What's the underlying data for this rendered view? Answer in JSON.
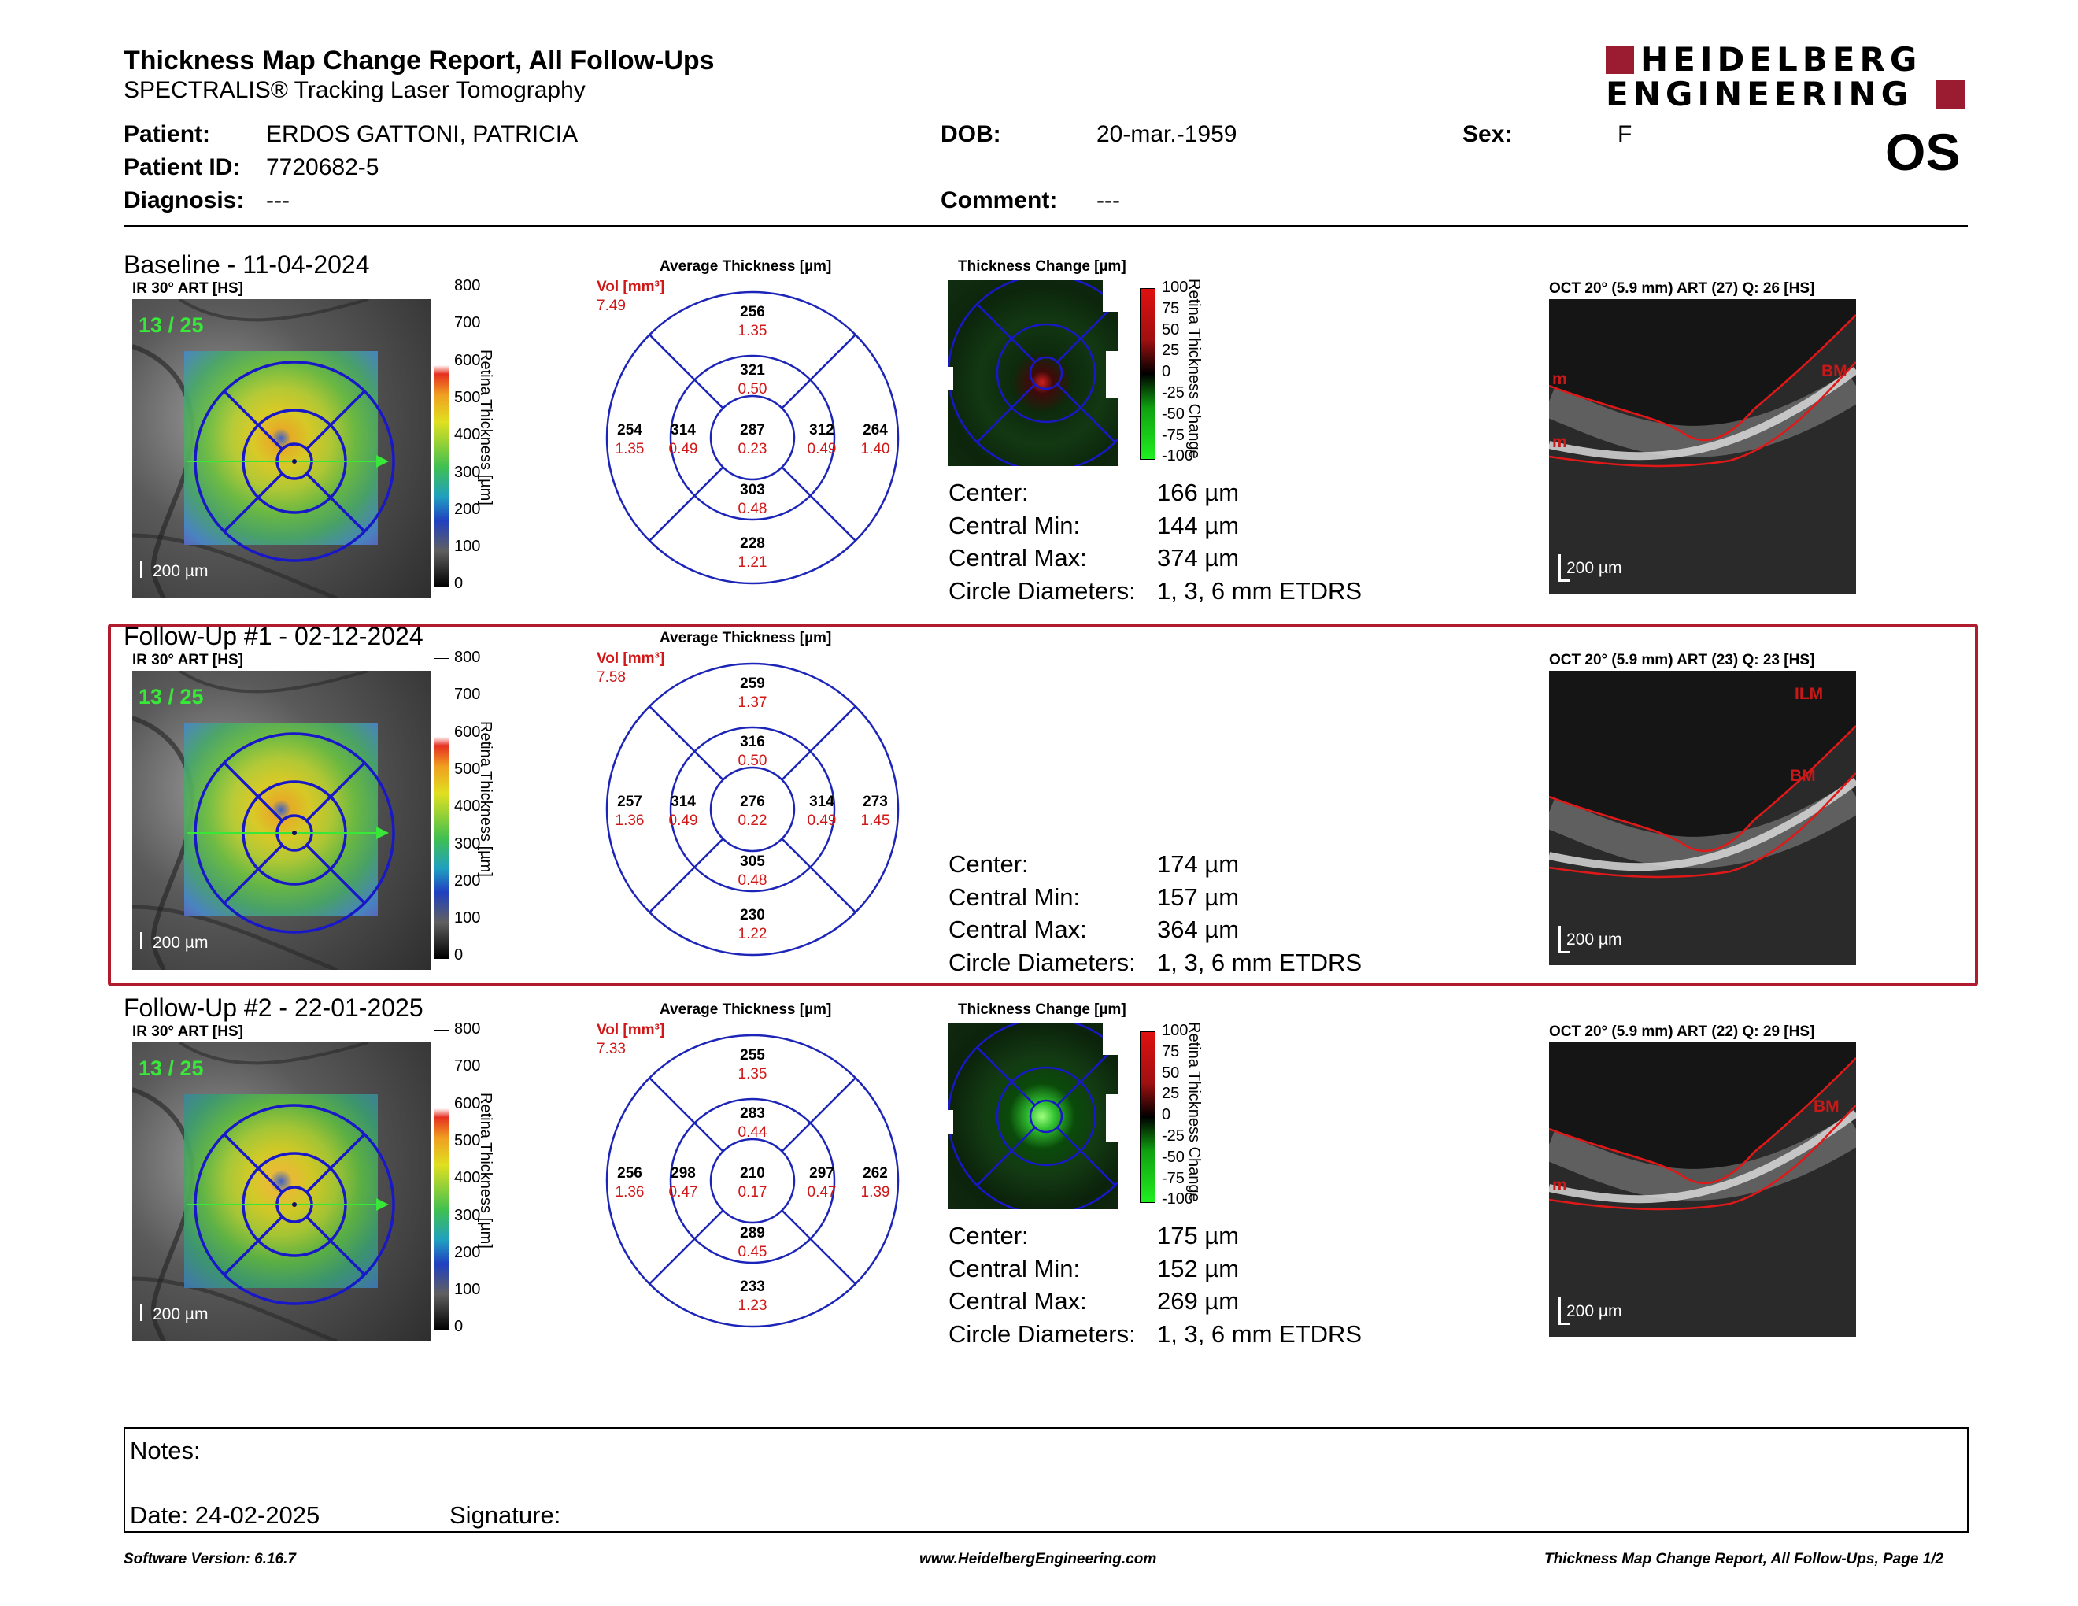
{
  "header": {
    "title": "Thickness Map Change Report, All Follow-Ups",
    "subtitle": "SPECTRALIS® Tracking Laser Tomography",
    "logo_line1": "HEIDELBERG",
    "logo_line2": "ENGINEERING",
    "eye": "OS"
  },
  "patient": {
    "patient_label": "Patient:",
    "patient_value": "ERDOS GATTONI, PATRICIA",
    "id_label": "Patient ID:",
    "id_value": "7720682-5",
    "diagnosis_label": "Diagnosis:",
    "diagnosis_value": "---",
    "dob_label": "DOB:",
    "dob_value": "20-mar.-1959",
    "comment_label": "Comment:",
    "comment_value": "---",
    "sex_label": "Sex:",
    "sex_value": "F"
  },
  "common": {
    "ir_label": "IR 30° ART [HS]",
    "scale_label": "200 µm",
    "retina_axis": "Retina Thickness [µm]",
    "retina_ticks": [
      "800",
      "700",
      "600",
      "500",
      "400",
      "300",
      "200",
      "100",
      "0"
    ],
    "change_ticks": [
      "100",
      "75",
      "50",
      "25",
      "0",
      "-25",
      "-50",
      "-75",
      "-100"
    ],
    "change_axis": "Retina Thickness Change",
    "avg_title": "Average Thickness [µm]",
    "change_title": "Thickness Change [µm]",
    "vol_label": "Vol [mm³]",
    "center_label": "Center:",
    "cmin_label": "Central Min:",
    "cmax_label": "Central Max:",
    "circle_label": "Circle Diameters:",
    "circle_value": "1, 3, 6 mm ETDRS"
  },
  "exams": [
    {
      "title": "Baseline - 11-04-2024",
      "frames": "13 / 25",
      "vol": "7.49",
      "etdrs": {
        "outer_top": [
          "256",
          "1.35"
        ],
        "inner_top": [
          "321",
          "0.50"
        ],
        "outer_left": [
          "254",
          "1.35"
        ],
        "inner_left": [
          "314",
          "0.49"
        ],
        "center": [
          "287",
          "0.23"
        ],
        "inner_right": [
          "312",
          "0.49"
        ],
        "outer_right": [
          "264",
          "1.40"
        ],
        "inner_bottom": [
          "303",
          "0.48"
        ],
        "outer_bottom": [
          "228",
          "1.21"
        ]
      },
      "center": "166 µm",
      "cmin": "144 µm",
      "cmax": "374 µm",
      "oct_label": "OCT 20° (5.9 mm) ART (27) Q: 26 [HS]",
      "oct_tags": [
        "m",
        "m",
        "BM"
      ]
    },
    {
      "title": "Follow-Up #1 - 02-12-2024",
      "frames": "13 / 25",
      "vol": "7.58",
      "etdrs": {
        "outer_top": [
          "259",
          "1.37"
        ],
        "inner_top": [
          "316",
          "0.50"
        ],
        "outer_left": [
          "257",
          "1.36"
        ],
        "inner_left": [
          "314",
          "0.49"
        ],
        "center": [
          "276",
          "0.22"
        ],
        "inner_right": [
          "314",
          "0.49"
        ],
        "outer_right": [
          "273",
          "1.45"
        ],
        "inner_bottom": [
          "305",
          "0.48"
        ],
        "outer_bottom": [
          "230",
          "1.22"
        ]
      },
      "center": "174 µm",
      "cmin": "157 µm",
      "cmax": "364 µm",
      "oct_label": "OCT 20° (5.9 mm) ART (23) Q: 23 [HS]",
      "oct_tags": [
        "ILM",
        "BM"
      ]
    },
    {
      "title": "Follow-Up #2 - 22-01-2025",
      "frames": "13 / 25",
      "vol": "7.33",
      "etdrs": {
        "outer_top": [
          "255",
          "1.35"
        ],
        "inner_top": [
          "283",
          "0.44"
        ],
        "outer_left": [
          "256",
          "1.36"
        ],
        "inner_left": [
          "298",
          "0.47"
        ],
        "center": [
          "210",
          "0.17"
        ],
        "inner_right": [
          "297",
          "0.47"
        ],
        "outer_right": [
          "262",
          "1.39"
        ],
        "inner_bottom": [
          "289",
          "0.45"
        ],
        "outer_bottom": [
          "233",
          "1.23"
        ]
      },
      "center": "175 µm",
      "cmin": "152 µm",
      "cmax": "269 µm",
      "oct_label": "OCT 20° (5.9 mm) ART (22) Q: 29 [HS]",
      "oct_tags": [
        "m",
        "BM"
      ]
    }
  ],
  "notes": {
    "notes_label": "Notes:",
    "date_label": "Date: 24-02-2025",
    "signature_label": "Signature:"
  },
  "footer": {
    "version": "Software Version: 6.16.7",
    "url": "www.HeidelbergEngineering.com",
    "page": "Thickness Map Change Report, All Follow-Ups, Page 1/2"
  },
  "colors": {
    "brand": "#9b1b30",
    "red_text": "#d01818",
    "etdrs_blue": "#1d25b8",
    "frame_green": "#38e838"
  }
}
